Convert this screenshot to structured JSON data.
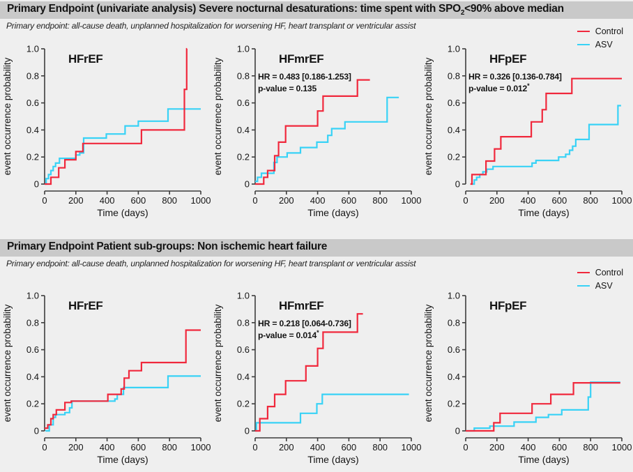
{
  "colors": {
    "control": "#f0283c",
    "asv": "#38d2f6",
    "band": "#c9c9c9",
    "page": "#efefef",
    "axis": "#3c3c3c",
    "text": "#141414"
  },
  "legend": {
    "control_label": "Control",
    "asv_label": "ASV"
  },
  "panels": [
    {
      "title_pre": "Primary Endpoint (univariate analysis) Severe nocturnal desaturations: time spent with SPO",
      "title_sub": "2",
      "title_post": "<90% above median",
      "subtitle": "Primary endpoint: all-cause death, unplanned hospitalization for worsening HF, heart transplant or ventricular assist"
    },
    {
      "title_pre": "Primary Endpoint Patient sub-groups: Non ischemic heart failure",
      "title_sub": "",
      "title_post": "",
      "subtitle": "Primary endpoint: all-cause death, unplanned hospitalization for worsening HF, heart transplant or ventricular assist"
    }
  ],
  "chart_data": [
    {
      "panel": 0,
      "type": "line",
      "subtype": "step-survival",
      "title": "HFrEF",
      "xlabel": "Time (days)",
      "ylabel": "event occurrence probability",
      "xlim": [
        0,
        1000
      ],
      "ylim": [
        0,
        1.0
      ],
      "xticks": [
        0,
        200,
        400,
        600,
        800,
        1000
      ],
      "yticks": [
        0,
        0.2,
        0.4,
        0.6,
        0.8,
        1.0
      ],
      "annotation": null,
      "series": [
        {
          "name": "Control",
          "color_key": "control",
          "points": [
            [
              0,
              0
            ],
            [
              40,
              0.05
            ],
            [
              90,
              0.12
            ],
            [
              130,
              0.18
            ],
            [
              200,
              0.24
            ],
            [
              245,
              0.3
            ],
            [
              620,
              0.4
            ],
            [
              895,
              0.7
            ],
            [
              910,
              1.0
            ]
          ],
          "end_x": 912
        },
        {
          "name": "ASV",
          "color_key": "asv",
          "points": [
            [
              0,
              0
            ],
            [
              10,
              0.04
            ],
            [
              25,
              0.07
            ],
            [
              40,
              0.1
            ],
            [
              55,
              0.13
            ],
            [
              70,
              0.155
            ],
            [
              95,
              0.19
            ],
            [
              200,
              0.215
            ],
            [
              225,
              0.23
            ],
            [
              250,
              0.34
            ],
            [
              395,
              0.37
            ],
            [
              515,
              0.43
            ],
            [
              600,
              0.465
            ],
            [
              790,
              0.555
            ]
          ],
          "end_x": 1000
        }
      ]
    },
    {
      "panel": 0,
      "type": "line",
      "subtype": "step-survival",
      "title": "HFmrEF",
      "xlabel": "Time (days)",
      "ylabel": "event occurrence probability",
      "xlim": [
        0,
        1000
      ],
      "ylim": [
        0,
        1.0
      ],
      "xticks": [
        0,
        200,
        400,
        600,
        800,
        1000
      ],
      "yticks": [
        0,
        0.2,
        0.4,
        0.6,
        0.8,
        1.0
      ],
      "annotation": {
        "hr": "HR = 0.483 [0.186-1.253]",
        "p": "p-value = 0.135",
        "star": ""
      },
      "series": [
        {
          "name": "Control",
          "color_key": "control",
          "points": [
            [
              0,
              0
            ],
            [
              55,
              0.05
            ],
            [
              80,
              0.1
            ],
            [
              125,
              0.21
            ],
            [
              150,
              0.31
            ],
            [
              195,
              0.43
            ],
            [
              400,
              0.54
            ],
            [
              435,
              0.65
            ],
            [
              655,
              0.77
            ]
          ],
          "end_x": 735
        },
        {
          "name": "ASV",
          "color_key": "asv",
          "points": [
            [
              0,
              0.02
            ],
            [
              15,
              0.05
            ],
            [
              40,
              0.08
            ],
            [
              120,
              0.16
            ],
            [
              140,
              0.2
            ],
            [
              205,
              0.23
            ],
            [
              290,
              0.27
            ],
            [
              395,
              0.31
            ],
            [
              465,
              0.36
            ],
            [
              490,
              0.41
            ],
            [
              575,
              0.46
            ],
            [
              845,
              0.64
            ]
          ],
          "end_x": 920
        }
      ]
    },
    {
      "panel": 0,
      "type": "line",
      "subtype": "step-survival",
      "title": "HFpEF",
      "xlabel": "Time (days)",
      "ylabel": "event occurrence probability",
      "xlim": [
        0,
        1000
      ],
      "ylim": [
        0,
        1.0
      ],
      "xticks": [
        0,
        200,
        400,
        600,
        800,
        1000
      ],
      "yticks": [
        0,
        0.2,
        0.4,
        0.6,
        0.8,
        1.0
      ],
      "annotation": {
        "hr": "HR = 0.326 [0.136-0.784]",
        "p": "p-value = 0.012",
        "star": "*"
      },
      "series": [
        {
          "name": "Control",
          "color_key": "control",
          "points": [
            [
              30,
              0
            ],
            [
              40,
              0.07
            ],
            [
              130,
              0.17
            ],
            [
              185,
              0.26
            ],
            [
              225,
              0.35
            ],
            [
              420,
              0.46
            ],
            [
              490,
              0.55
            ],
            [
              515,
              0.67
            ],
            [
              680,
              0.78
            ]
          ],
          "end_x": 1000
        },
        {
          "name": "ASV",
          "color_key": "asv",
          "points": [
            [
              40,
              0
            ],
            [
              55,
              0.03
            ],
            [
              70,
              0.05
            ],
            [
              90,
              0.07
            ],
            [
              110,
              0.09
            ],
            [
              135,
              0.11
            ],
            [
              175,
              0.13
            ],
            [
              425,
              0.155
            ],
            [
              450,
              0.175
            ],
            [
              595,
              0.2
            ],
            [
              640,
              0.22
            ],
            [
              665,
              0.25
            ],
            [
              685,
              0.28
            ],
            [
              705,
              0.33
            ],
            [
              790,
              0.44
            ],
            [
              975,
              0.58
            ]
          ],
          "end_x": 995
        }
      ]
    },
    {
      "panel": 1,
      "type": "line",
      "subtype": "step-survival",
      "title": "HFrEF",
      "xlabel": "Time (days)",
      "ylabel": "event occurrence probability",
      "xlim": [
        0,
        1000
      ],
      "ylim": [
        0,
        1.0
      ],
      "xticks": [
        0,
        200,
        400,
        600,
        800,
        1000
      ],
      "yticks": [
        0,
        0.2,
        0.4,
        0.6,
        0.8,
        1.0
      ],
      "annotation": null,
      "series": [
        {
          "name": "Control",
          "color_key": "control",
          "points": [
            [
              0,
              0.02
            ],
            [
              20,
              0.045
            ],
            [
              40,
              0.09
            ],
            [
              55,
              0.12
            ],
            [
              75,
              0.155
            ],
            [
              130,
              0.21
            ],
            [
              170,
              0.22
            ],
            [
              405,
              0.27
            ],
            [
              490,
              0.31
            ],
            [
              510,
              0.39
            ],
            [
              540,
              0.445
            ],
            [
              620,
              0.505
            ],
            [
              905,
              0.745
            ]
          ],
          "end_x": 1000
        },
        {
          "name": "ASV",
          "color_key": "asv",
          "points": [
            [
              5,
              0
            ],
            [
              30,
              0.045
            ],
            [
              55,
              0.1
            ],
            [
              70,
              0.12
            ],
            [
              130,
              0.135
            ],
            [
              160,
              0.17
            ],
            [
              175,
              0.22
            ],
            [
              450,
              0.235
            ],
            [
              465,
              0.27
            ],
            [
              505,
              0.32
            ],
            [
              790,
              0.405
            ]
          ],
          "end_x": 1000
        }
      ]
    },
    {
      "panel": 1,
      "type": "line",
      "subtype": "step-survival",
      "title": "HFmrEF",
      "xlabel": "Time (days)",
      "ylabel": "event occurrence probability",
      "xlim": [
        0,
        1000
      ],
      "ylim": [
        0,
        1.0
      ],
      "xticks": [
        0,
        200,
        400,
        600,
        800,
        1000
      ],
      "yticks": [
        0,
        0.2,
        0.4,
        0.6,
        0.8,
        1.0
      ],
      "annotation": {
        "hr": "HR = 0.218 [0.064-0.736]",
        "p": "p-value = 0.014",
        "star": "*"
      },
      "series": [
        {
          "name": "Control",
          "color_key": "control",
          "points": [
            [
              0,
              0
            ],
            [
              30,
              0.09
            ],
            [
              80,
              0.18
            ],
            [
              125,
              0.27
            ],
            [
              195,
              0.37
            ],
            [
              325,
              0.48
            ],
            [
              400,
              0.61
            ],
            [
              435,
              0.73
            ],
            [
              655,
              0.865
            ]
          ],
          "end_x": 690
        },
        {
          "name": "ASV",
          "color_key": "asv",
          "points": [
            [
              0,
              0
            ],
            [
              8,
              0.06
            ],
            [
              290,
              0.13
            ],
            [
              395,
              0.2
            ],
            [
              430,
              0.27
            ]
          ],
          "end_x": 985
        }
      ]
    },
    {
      "panel": 1,
      "type": "line",
      "subtype": "step-survival",
      "title": "HFpEF",
      "xlabel": "Time (days)",
      "ylabel": "event occurrence probability",
      "xlim": [
        0,
        1000
      ],
      "ylim": [
        0,
        1.0
      ],
      "xticks": [
        0,
        200,
        400,
        600,
        800,
        1000
      ],
      "yticks": [
        0,
        0.2,
        0.4,
        0.6,
        0.8,
        1.0
      ],
      "annotation": null,
      "series": [
        {
          "name": "Control",
          "color_key": "control",
          "points": [
            [
              0,
              0
            ],
            [
              180,
              0.06
            ],
            [
              220,
              0.13
            ],
            [
              425,
              0.2
            ],
            [
              545,
              0.27
            ],
            [
              690,
              0.355
            ]
          ],
          "end_x": 990
        },
        {
          "name": "ASV",
          "color_key": "asv",
          "points": [
            [
              0,
              0
            ],
            [
              55,
              0.02
            ],
            [
              155,
              0.035
            ],
            [
              310,
              0.065
            ],
            [
              450,
              0.1
            ],
            [
              530,
              0.12
            ],
            [
              615,
              0.155
            ],
            [
              785,
              0.25
            ],
            [
              800,
              0.36
            ]
          ],
          "end_x": 990
        }
      ]
    }
  ]
}
